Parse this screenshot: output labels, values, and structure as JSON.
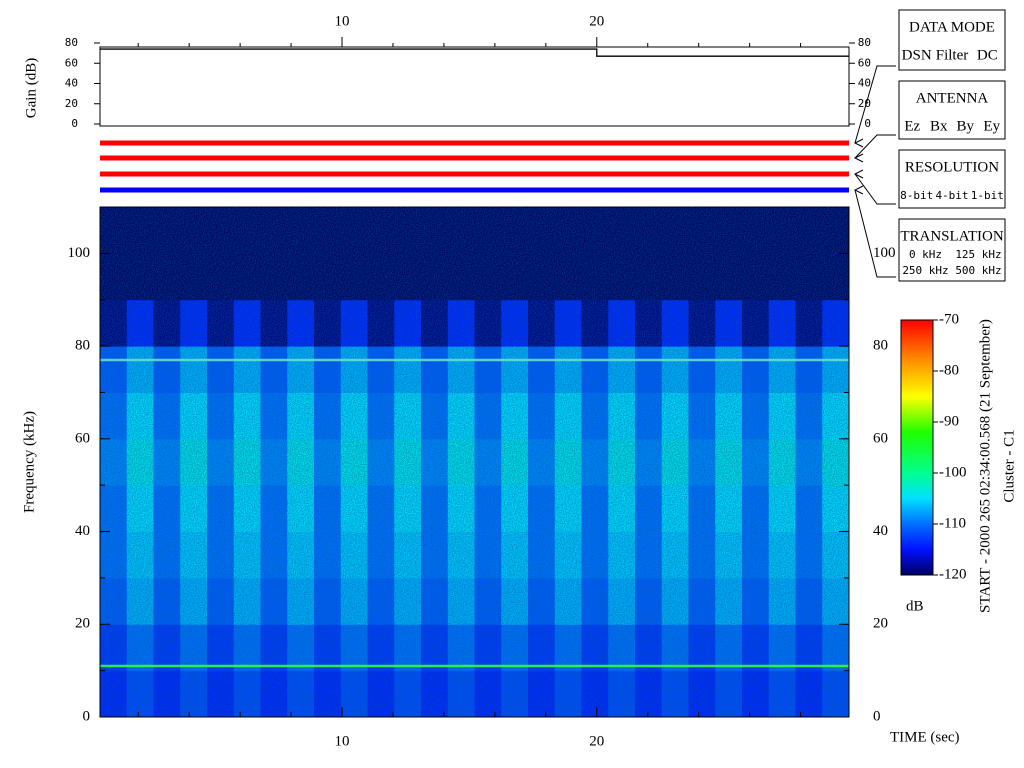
{
  "chart_data": {
    "type": "spectrogram",
    "xlabel": "TIME (sec)",
    "ylabel": "Frequency (kHz)",
    "xlim": [
      0.5,
      29.9
    ],
    "xticks": [
      10,
      20
    ],
    "xminorticks": [
      2,
      4,
      6,
      8,
      12,
      14,
      16,
      18,
      22,
      24,
      26,
      28
    ],
    "ylim": [
      0,
      110
    ],
    "yticks": [
      0,
      20,
      40,
      60,
      80,
      100
    ],
    "yminorticks": [
      10,
      30,
      50,
      70,
      90
    ],
    "freq_bins": [
      0,
      10,
      20,
      30,
      40,
      50,
      60,
      70,
      80,
      90,
      100,
      110
    ],
    "z": [
      [
        -114,
        -112,
        -114,
        -112,
        -114,
        -112,
        -114,
        -112,
        -114,
        -112,
        -114,
        -112,
        -114,
        -112,
        -114,
        -112,
        -114,
        -112,
        -114,
        -112,
        -114,
        -112,
        -114,
        -112,
        -114,
        -112,
        -114,
        -112
      ],
      [
        -113,
        -110,
        -113,
        -110,
        -113,
        -110,
        -113,
        -110,
        -113,
        -110,
        -113,
        -110,
        -113,
        -110,
        -113,
        -110,
        -113,
        -110,
        -113,
        -110,
        -113,
        -110,
        -113,
        -110,
        -113,
        -110,
        -113,
        -110
      ],
      [
        -111,
        -107,
        -111,
        -107,
        -111,
        -107,
        -111,
        -107,
        -111,
        -107,
        -111,
        -107,
        -111,
        -107,
        -111,
        -107,
        -111,
        -107,
        -111,
        -107,
        -111,
        -107,
        -111,
        -107,
        -111,
        -107,
        -111,
        -107
      ],
      [
        -110,
        -106,
        -110,
        -106,
        -110,
        -106,
        -110,
        -106,
        -110,
        -106,
        -110,
        -106,
        -110,
        -106,
        -110,
        -106,
        -110,
        -106,
        -110,
        -106,
        -110,
        -106,
        -110,
        -106,
        -110,
        -106,
        -110,
        -106
      ],
      [
        -110,
        -105,
        -110,
        -105,
        -110,
        -105,
        -110,
        -105,
        -110,
        -105,
        -110,
        -105,
        -110,
        -105,
        -110,
        -105,
        -110,
        -105,
        -110,
        -105,
        -110,
        -105,
        -110,
        -105,
        -110,
        -105,
        -110,
        -105
      ],
      [
        -109,
        -104,
        -109,
        -104,
        -109,
        -104,
        -109,
        -104,
        -109,
        -104,
        -109,
        -104,
        -109,
        -104,
        -109,
        -104,
        -109,
        -104,
        -109,
        -104,
        -109,
        -104,
        -109,
        -104,
        -109,
        -104,
        -109,
        -104
      ],
      [
        -110,
        -105,
        -110,
        -105,
        -110,
        -105,
        -110,
        -105,
        -110,
        -105,
        -110,
        -105,
        -110,
        -105,
        -110,
        -105,
        -110,
        -105,
        -110,
        -105,
        -110,
        -105,
        -110,
        -105,
        -110,
        -105,
        -110,
        -105
      ],
      [
        -111,
        -107,
        -111,
        -107,
        -111,
        -107,
        -111,
        -107,
        -111,
        -107,
        -111,
        -107,
        -111,
        -107,
        -111,
        -107,
        -111,
        -107,
        -111,
        -107,
        -111,
        -107,
        -111,
        -107,
        -111,
        -107,
        -111,
        -107
      ],
      [
        -119,
        -114,
        -119,
        -114,
        -119,
        -114,
        -119,
        -114,
        -119,
        -114,
        -119,
        -114,
        -119,
        -114,
        -119,
        -114,
        -119,
        -114,
        -119,
        -114,
        -119,
        -114,
        -119,
        -114,
        -119,
        -114,
        -119,
        -114
      ],
      [
        -120,
        -120,
        -120,
        -120,
        -120,
        -120,
        -120,
        -120,
        -120,
        -120,
        -120,
        -120,
        -120,
        -120,
        -120,
        -120,
        -120,
        -120,
        -120,
        -120,
        -120,
        -120,
        -120,
        -120,
        -120,
        -120,
        -120,
        -120
      ],
      [
        -120,
        -120,
        -120,
        -120,
        -120,
        -120,
        -120,
        -120,
        -120,
        -120,
        -120,
        -120,
        -120,
        -120,
        -120,
        -120,
        -120,
        -120,
        -120,
        -120,
        -120,
        -120,
        -120,
        -120,
        -120,
        -120,
        -120,
        -120
      ]
    ],
    "lines": [
      {
        "value": 11,
        "color": "#33ff33"
      },
      {
        "value": 77,
        "color": "#66ddcc"
      }
    ],
    "colorbar": {
      "label": "dB",
      "lim": [
        -120,
        -70
      ],
      "ticks": [
        -120,
        -110,
        -100,
        -90,
        -80,
        -70
      ],
      "colormap": [
        {
          "value": -120,
          "color": "#000060"
        },
        {
          "value": -115,
          "color": "#0010ff"
        },
        {
          "value": -110,
          "color": "#0070ff"
        },
        {
          "value": -105,
          "color": "#00e0ff"
        },
        {
          "value": -100,
          "color": "#00ff90"
        },
        {
          "value": -92,
          "color": "#20ff00"
        },
        {
          "value": -85,
          "color": "#ffff00"
        },
        {
          "value": -78,
          "color": "#ff9000"
        },
        {
          "value": -70,
          "color": "#ff0000"
        }
      ]
    },
    "gain": {
      "ylabel": "Gain (dB)",
      "ylim": [
        0,
        80
      ],
      "yticks": [
        0,
        20,
        40,
        60,
        80
      ],
      "x": [
        0.5,
        20,
        20,
        29.9
      ],
      "values": [
        74,
        74,
        67,
        67
      ]
    },
    "modes": [
      {
        "title": "DATA MODE",
        "options": [
          {
            "text": "DSN",
            "color": "#ff0000"
          },
          {
            "text": "Filter",
            "color": "#00ee00"
          },
          {
            "text": "DC",
            "color": "#0000ff"
          }
        ],
        "active": 0
      },
      {
        "title": "ANTENNA",
        "options": [
          {
            "text": "Ez",
            "color": "#ff0000"
          },
          {
            "text": "Bx",
            "color": "#00ee00"
          },
          {
            "text": "By",
            "color": "#0000ff"
          },
          {
            "text": "Ey",
            "color": "#000000"
          }
        ],
        "active": 0
      },
      {
        "title": "RESOLUTION",
        "options": [
          {
            "text": "8-bit",
            "color": "#ff0000"
          },
          {
            "text": "4-bit",
            "color": "#00ee00"
          },
          {
            "text": "1-bit",
            "color": "#0000ff"
          }
        ],
        "active": 0
      },
      {
        "title": "TRANSLATION",
        "options": [
          {
            "text": "0 kHz",
            "color": "#ff0000"
          },
          {
            "text": "125 kHz",
            "color": "#00ee00"
          },
          {
            "text": "250 kHz",
            "color": "#0000ff"
          },
          {
            "text": "500 kHz",
            "color": "#000000"
          }
        ],
        "active": 2
      }
    ],
    "start_label": "START - 2000 265 02:34:00.568 (21 September)",
    "spacecraft_label": "Cluster - C1"
  }
}
